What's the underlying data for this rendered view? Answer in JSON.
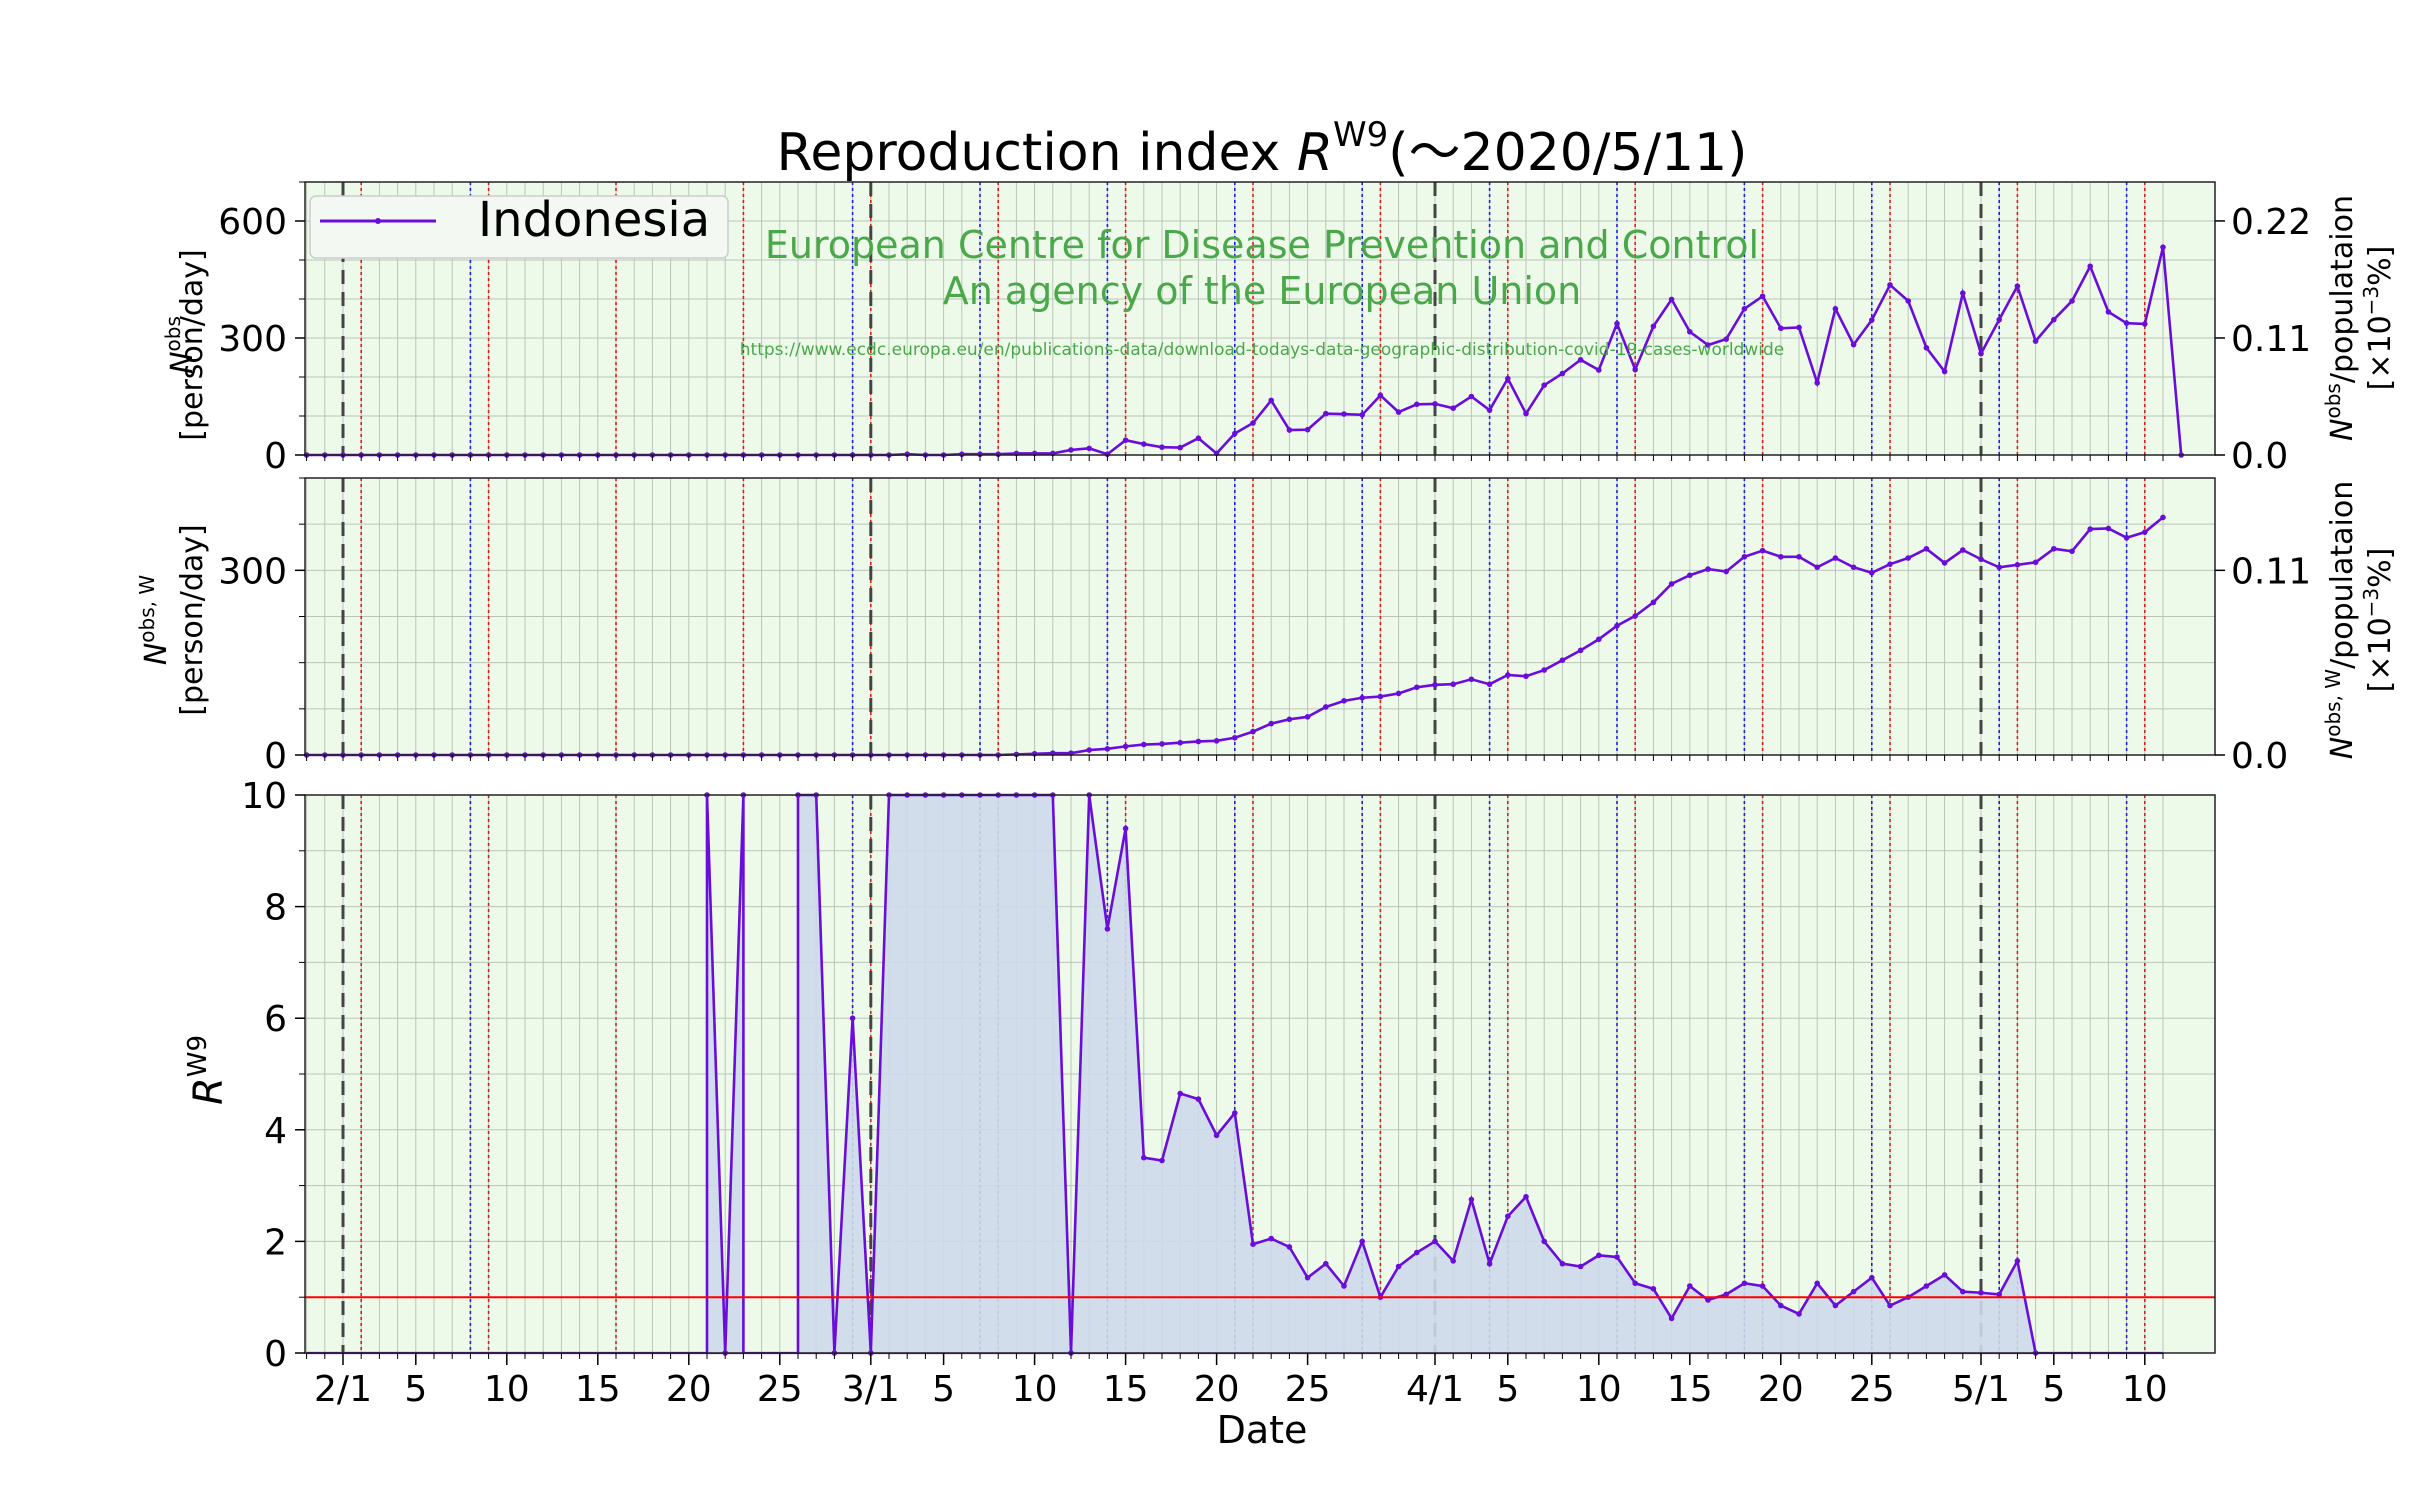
{
  "title": {
    "prefix": "Reproduction index ",
    "r_symbol": "R",
    "r_superscript": "W9",
    "suffix": "(～2020/5/11)"
  },
  "watermark": {
    "line1": "European Centre for Disease Prevention and Control",
    "line2": "An agency of the European Union",
    "url": "https://www.ecdc.europa.eu/en/publications-data/download-todays-data-geographic-distribution-covid-19-cases-worldwide"
  },
  "legend": {
    "label": "Indonesia"
  },
  "colors": {
    "series": "#6a0ddb",
    "area_fill": "#cdd9ea",
    "plot_bg": "#edfaea",
    "threshold": "#ff0000",
    "sunday": "#d62020",
    "saturday": "#2020d6",
    "month": "#444444"
  },
  "axes": {
    "xlabel": "Date",
    "x_ticklabels": [
      "2/1",
      "5",
      "10",
      "15",
      "20",
      "25",
      "3/1",
      "5",
      "10",
      "15",
      "20",
      "25",
      "4/1",
      "5",
      "10",
      "15",
      "20",
      "25",
      "5/1",
      "5",
      "10"
    ],
    "panel1": {
      "ylabel_sym": "N",
      "ylabel_sup": "obs",
      "ylabel_unit": "[person/day]",
      "y_ticks": [
        "0",
        "300",
        "600"
      ],
      "right_ticks": [
        "0.0",
        "0.11",
        "0.22"
      ],
      "right_label_sym": "N",
      "right_label_sup": "obs",
      "right_label_rest": "/populataion",
      "right_label_unit_pre": "[×10",
      "right_label_unit_sup": "−3",
      "right_label_unit_post": "%]"
    },
    "panel2": {
      "ylabel_sym": "N",
      "ylabel_sup": "obs, W",
      "ylabel_unit": "[person/day]",
      "y_ticks": [
        "0",
        "300"
      ],
      "right_ticks": [
        "0.0",
        "0.11"
      ],
      "right_label_sym": "N",
      "right_label_sup": "obs, W",
      "right_label_rest": "/populataion",
      "right_label_unit_pre": "[×10",
      "right_label_unit_sup": "−3",
      "right_label_unit_post": "%]"
    },
    "panel3": {
      "ylabel_sym": "R",
      "ylabel_sup": "W9",
      "y_ticks": [
        "0",
        "2",
        "4",
        "6",
        "8",
        "10"
      ]
    }
  },
  "chart_data": {
    "type": "line",
    "x_start": "2020-01-30",
    "x_end": "2020-05-11",
    "saturday_dates": [
      "2020-02-08",
      "2020-02-29",
      "2020-03-07",
      "2020-03-14",
      "2020-03-21",
      "2020-03-28",
      "2020-04-04",
      "2020-04-11",
      "2020-04-18",
      "2020-04-25",
      "2020-05-02",
      "2020-05-09"
    ],
    "sunday_dates": [
      "2020-02-02",
      "2020-02-09",
      "2020-02-16",
      "2020-02-23",
      "2020-03-01",
      "2020-03-08",
      "2020-03-15",
      "2020-03-22",
      "2020-03-29",
      "2020-04-05",
      "2020-04-12",
      "2020-04-19",
      "2020-04-26",
      "2020-05-03",
      "2020-05-10"
    ],
    "month_start_dates": [
      "2020-02-01",
      "2020-03-01",
      "2020-04-01",
      "2020-05-01"
    ],
    "panels": [
      {
        "name": "daily",
        "ylim": [
          0,
          700
        ],
        "right_ylim": [
          0,
          0.2566
        ],
        "series": [
          {
            "name": "Indonesia",
            "start": "2020-01-30",
            "values": [
              0,
              0,
              0,
              0,
              0,
              0,
              0,
              0,
              0,
              0,
              0,
              0,
              0,
              0,
              0,
              0,
              0,
              0,
              0,
              0,
              0,
              0,
              0,
              0,
              0,
              0,
              0,
              0,
              0,
              0,
              0,
              0,
              0,
              2,
              0,
              0,
              2,
              2,
              2,
              4,
              4,
              4,
              13,
              17,
              2,
              38,
              28,
              20,
              19,
              43,
              4,
              55,
              82,
              140,
              64,
              65,
              106,
              105,
              103,
              153,
              110,
              130,
              131,
              120,
              150,
              115,
              196,
              106,
              179,
              209,
              244,
              218,
              337,
              219,
              330,
              399,
              316,
              282,
              297,
              375,
              407,
              325,
              327,
              185,
              375,
              283,
              346,
              436,
              395,
              275,
              214,
              415,
              260,
              347,
              433,
              292,
              347,
              395,
              484,
              367,
              338,
              336,
              533,
              0
            ]
          }
        ]
      },
      {
        "name": "weekly",
        "ylim": [
          0,
          450
        ],
        "right_ylim": [
          0,
          0.165
        ],
        "series": [
          {
            "name": "Indonesia",
            "start": "2020-01-30",
            "values": [
              0,
              0,
              0,
              0,
              0,
              0,
              0,
              0,
              0,
              0,
              0,
              0,
              0,
              0,
              0,
              0,
              0,
              0,
              0,
              0,
              0,
              0,
              0,
              0,
              0,
              0,
              0,
              0,
              0,
              0,
              0,
              0,
              0,
              0,
              0,
              0,
              0,
              0,
              0,
              1,
              2,
              3,
              3,
              8,
              10,
              14,
              17,
              18,
              20,
              22,
              23,
              28,
              38,
              51,
              58,
              62,
              78,
              88,
              93,
              95,
              100,
              110,
              114,
              115,
              123,
              115,
              130,
              128,
              138,
              154,
              170,
              188,
              210,
              226,
              248,
              278,
              292,
              302,
              298,
              322,
              332,
              322,
              322,
              305,
              320,
              305,
              296,
              310,
              320,
              335,
              312,
              333,
              318,
              305,
              309,
              313,
              335,
              331,
              367,
              368,
              353,
              362,
              386
            ]
          }
        ]
      },
      {
        "name": "R",
        "ylim": [
          0,
          10
        ],
        "threshold": 1,
        "series": [
          {
            "name": "Indonesia",
            "start": "2020-01-30",
            "values": [
              0,
              0,
              0,
              0,
              0,
              0,
              0,
              0,
              0,
              0,
              0,
              0,
              0,
              0,
              0,
              0,
              0,
              0,
              0,
              0,
              0,
              0,
              0,
              0,
              0,
              0,
              0,
              0,
              0,
              0,
              0,
              0,
              0,
              0,
              0,
              0,
              0,
              0,
              0,
              0,
              0,
              0,
              0,
              0,
              0,
              0,
              0,
              0,
              0,
              0,
              0,
              0,
              0,
              0,
              0,
              0,
              0,
              0,
              0,
              0,
              0,
              0,
              0,
              0,
              0,
              0,
              0,
              0,
              0,
              0,
              0,
              0,
              0,
              0,
              0,
              0,
              0,
              0,
              0,
              0,
              0,
              0,
              0,
              0,
              0,
              0,
              0,
              0,
              0,
              0,
              0,
              0,
              0,
              0,
              0,
              0,
              0,
              0,
              0,
              0,
              0,
              0,
              0
            ],
            "segments": [
              {
                "start": "2020-02-21",
                "values": [
                  20,
                  0,
                  20
                ]
              },
              {
                "start": "2020-02-26",
                "values": [
                  20,
                  20,
                  0,
                  6.0,
                  0,
                  20,
                  20,
                  20,
                  20,
                  20,
                  20,
                  20,
                  20,
                  20,
                  20,
                  0,
                  12,
                  7.6,
                  9.4,
                  3.5,
                  3.45,
                  4.65,
                  4.55,
                  3.9,
                  4.3,
                  1.95,
                  2.05,
                  1.9,
                  1.35,
                  1.6,
                  1.2,
                  2.0,
                  1.0,
                  1.55,
                  1.8,
                  2.0,
                  1.65,
                  2.75,
                  1.6,
                  2.45,
                  2.8,
                  2.0,
                  1.6,
                  1.55,
                  1.75,
                  1.72,
                  1.25,
                  1.15,
                  0.62,
                  1.2,
                  0.95,
                  1.05,
                  1.25,
                  1.2,
                  0.85,
                  0.7,
                  1.25,
                  0.85,
                  1.1,
                  1.35,
                  0.85,
                  1.0,
                  1.2,
                  1.4,
                  1.1,
                  1.08,
                  1.05,
                  1.65,
                  0
                ]
              }
            ]
          }
        ]
      }
    ]
  }
}
